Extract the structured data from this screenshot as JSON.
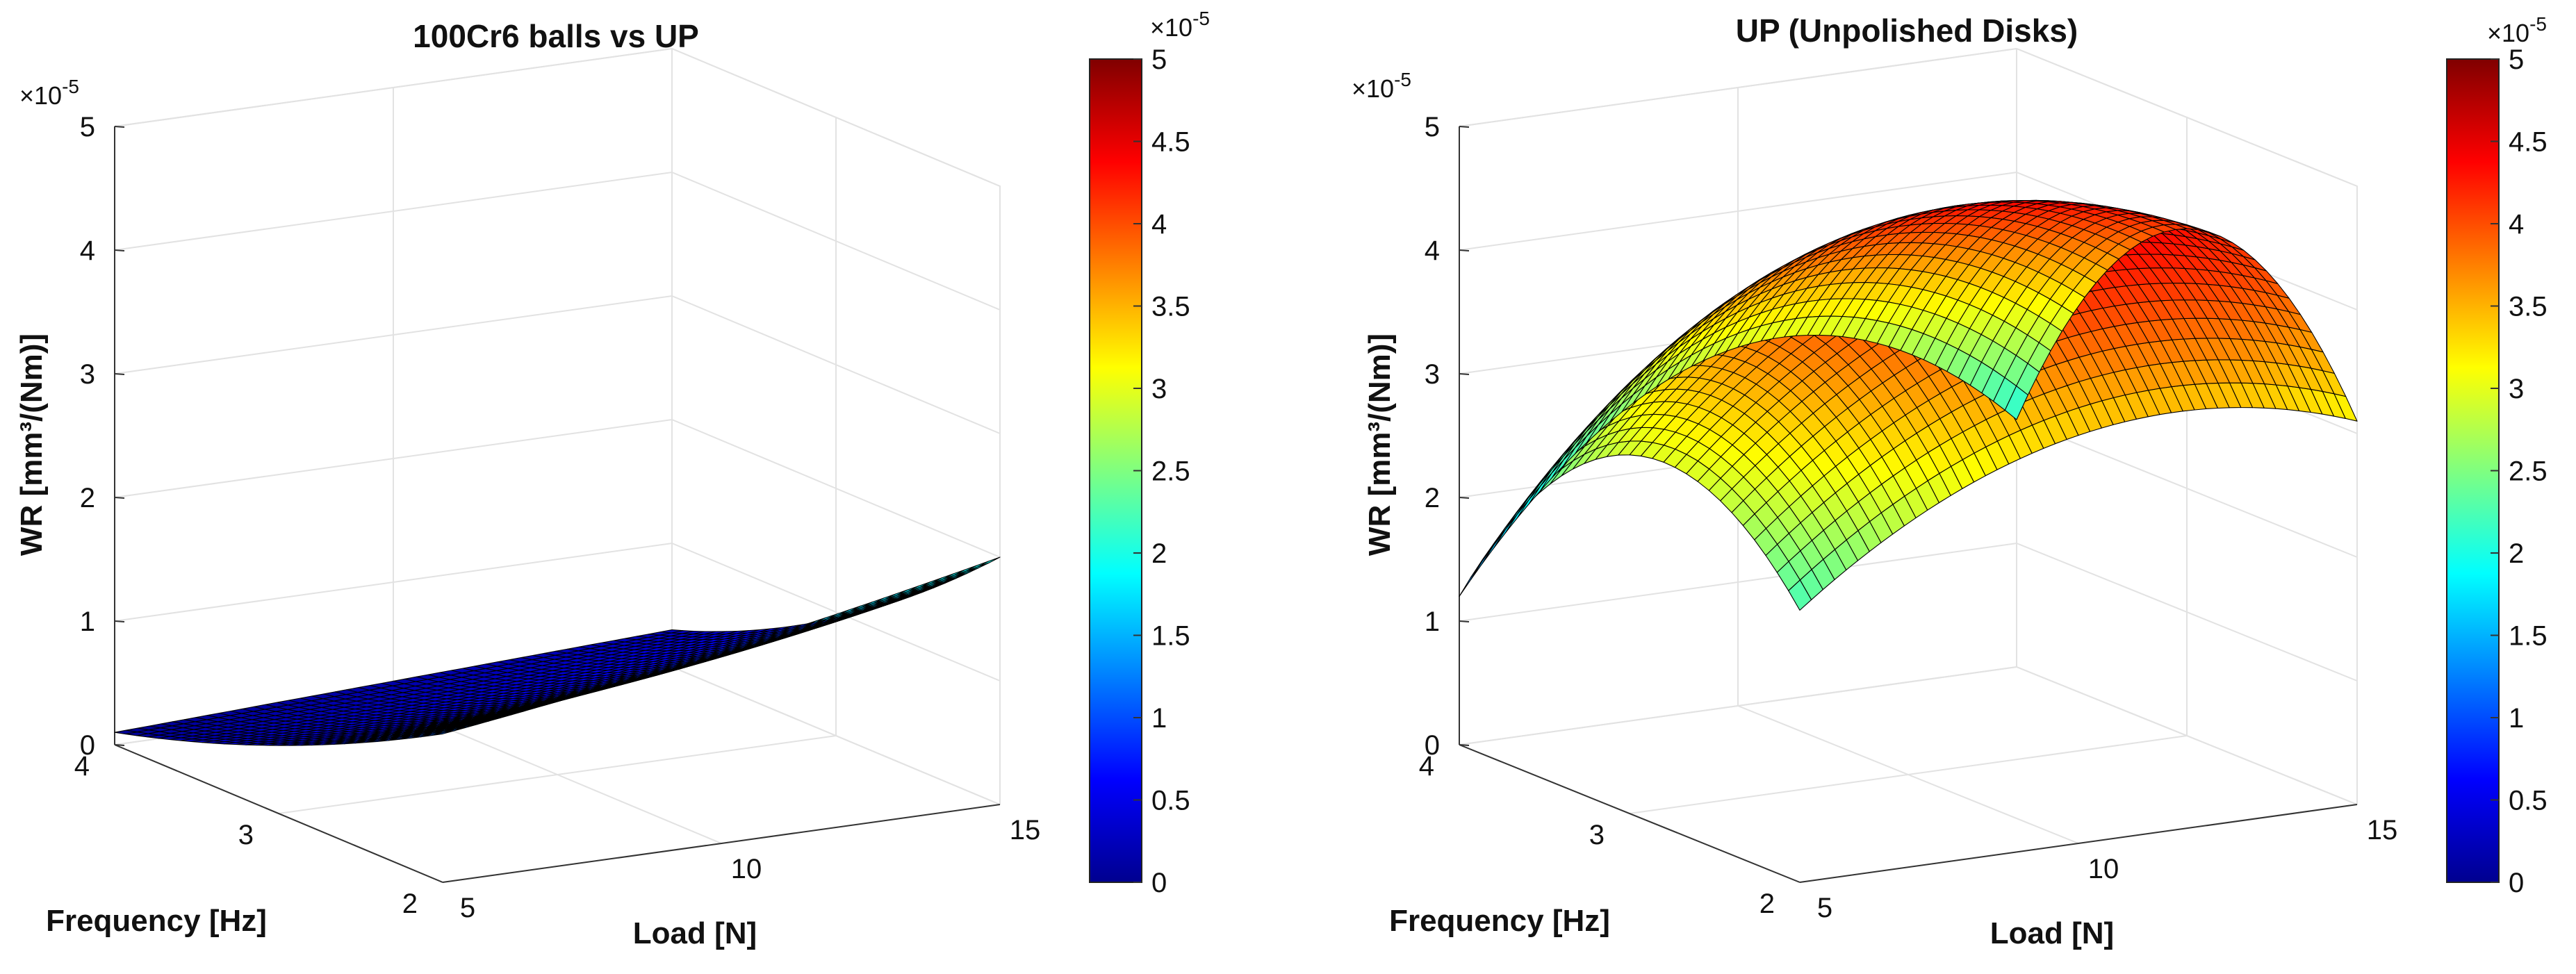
{
  "colors": {
    "colormap": "jet",
    "background": "#ffffff",
    "grid": "#e2e2e2",
    "mesh_edge": "#000000"
  },
  "chart_data": [
    {
      "type": "surface",
      "title": "100Cr6 balls vs UP",
      "xlabel": "Load [N]",
      "ylabel": "Frequency [Hz]",
      "zlabel": "WR [mm³/(Nm)]",
      "xlim": [
        5,
        15
      ],
      "ylim": [
        2,
        4
      ],
      "zlim": [
        0,
        5
      ],
      "z_multiplier_label": "×10",
      "z_multiplier_exponent": "-5",
      "x_ticks": [
        "5",
        "10",
        "15"
      ],
      "y_ticks": [
        "2",
        "3",
        "4"
      ],
      "z_ticks": [
        "0",
        "1",
        "2",
        "3",
        "4",
        "5"
      ],
      "grid": true,
      "surface_samples": {
        "load": [
          5,
          10,
          15
        ],
        "frequency": [
          2,
          3,
          4
        ],
        "wr_e-5": [
          [
            1.2,
            0.55,
            0.1
          ],
          [
            1.55,
            0.65,
            0.2
          ],
          [
            2.0,
            0.95,
            0.3
          ]
        ]
      },
      "colorbar": {
        "range": [
          0,
          5
        ],
        "ticks": [
          "0",
          "0.5",
          "1",
          "1.5",
          "2",
          "2.5",
          "3",
          "3.5",
          "4",
          "4.5",
          "5"
        ],
        "multiplier_label": "×10",
        "multiplier_exponent": "-5"
      }
    },
    {
      "type": "surface",
      "title": "UP (Unpolished Disks)",
      "xlabel": "Load [N]",
      "ylabel": "Frequency [Hz]",
      "zlabel": "WR [mm³/(Nm)]",
      "xlim": [
        5,
        15
      ],
      "ylim": [
        2,
        4
      ],
      "zlim": [
        0,
        5
      ],
      "z_multiplier_label": "×10",
      "z_multiplier_exponent": "-5",
      "x_ticks": [
        "5",
        "10",
        "15"
      ],
      "y_ticks": [
        "2",
        "3",
        "4"
      ],
      "z_ticks": [
        "0",
        "1",
        "2",
        "3",
        "4",
        "5"
      ],
      "grid": true,
      "surface_samples": {
        "load": [
          5,
          10,
          15
        ],
        "frequency": [
          2,
          3,
          4
        ],
        "wr_e-5": [
          [
            2.2,
            2.9,
            1.2
          ],
          [
            3.3,
            4.4,
            2.9
          ],
          [
            3.1,
            4.1,
            2.0
          ]
        ]
      },
      "colorbar": {
        "range": [
          0,
          5
        ],
        "ticks": [
          "0",
          "0.5",
          "1",
          "1.5",
          "2",
          "2.5",
          "3",
          "3.5",
          "4",
          "4.5",
          "5"
        ],
        "multiplier_label": "×10",
        "multiplier_exponent": "-5"
      }
    }
  ]
}
